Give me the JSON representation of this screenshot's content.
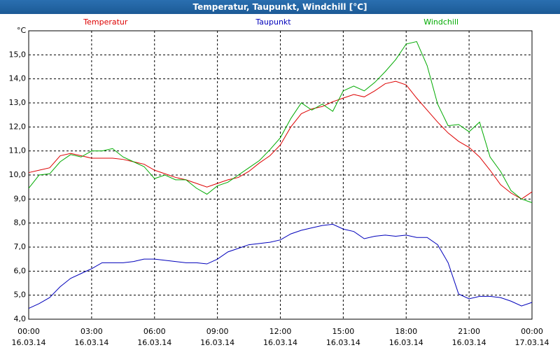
{
  "chart_data": {
    "type": "line",
    "title": "Temperatur, Taupunkt, Windchill [°C]",
    "y_unit": "°C",
    "x": [
      0,
      0.5,
      1,
      1.5,
      2,
      2.5,
      3,
      3.5,
      4,
      4.5,
      5,
      5.5,
      6,
      6.5,
      7,
      7.5,
      8,
      8.5,
      9,
      9.5,
      10,
      10.5,
      11,
      11.5,
      12,
      12.5,
      13,
      13.5,
      14,
      14.5,
      15,
      15.5,
      16,
      16.5,
      17,
      17.5,
      18,
      18.5,
      19,
      19.5,
      20,
      20.5,
      21,
      21.5,
      22,
      22.5,
      23,
      23.5,
      24
    ],
    "series": [
      {
        "name": "Temperatur",
        "color": "#dd0000",
        "values": [
          10.1,
          10.2,
          10.3,
          10.8,
          10.9,
          10.8,
          10.7,
          10.7,
          10.7,
          10.65,
          10.55,
          10.45,
          10.2,
          10.05,
          9.9,
          9.8,
          9.65,
          9.5,
          9.65,
          9.8,
          9.9,
          10.15,
          10.5,
          10.8,
          11.25,
          12.0,
          12.55,
          12.75,
          12.85,
          13.05,
          13.2,
          13.35,
          13.25,
          13.5,
          13.8,
          13.9,
          13.75,
          13.2,
          12.7,
          12.2,
          11.75,
          11.4,
          11.15,
          10.75,
          10.2,
          9.6,
          9.25,
          9.0,
          9.3
        ]
      },
      {
        "name": "Taupunkt",
        "color": "#0000bb",
        "values": [
          4.45,
          4.65,
          4.9,
          5.35,
          5.7,
          5.9,
          6.1,
          6.35,
          6.35,
          6.35,
          6.4,
          6.5,
          6.5,
          6.45,
          6.4,
          6.35,
          6.35,
          6.3,
          6.5,
          6.8,
          6.95,
          7.1,
          7.15,
          7.2,
          7.3,
          7.55,
          7.7,
          7.8,
          7.9,
          7.95,
          7.75,
          7.65,
          7.35,
          7.45,
          7.5,
          7.45,
          7.5,
          7.4,
          7.4,
          7.1,
          6.35,
          5.05,
          4.85,
          4.95,
          4.95,
          4.9,
          4.75,
          4.55,
          4.7
        ]
      },
      {
        "name": "Windchill",
        "color": "#00aa00",
        "values": [
          9.45,
          10.0,
          10.05,
          10.55,
          10.85,
          10.75,
          11.0,
          11.0,
          11.1,
          10.75,
          10.55,
          10.35,
          9.85,
          10.0,
          9.8,
          9.8,
          9.45,
          9.2,
          9.55,
          9.7,
          10.0,
          10.3,
          10.6,
          11.05,
          11.55,
          12.35,
          13.0,
          12.7,
          12.95,
          12.65,
          13.5,
          13.7,
          13.5,
          13.85,
          14.3,
          14.8,
          15.45,
          15.55,
          14.55,
          12.95,
          12.05,
          12.1,
          11.8,
          12.2,
          10.75,
          10.15,
          9.35,
          9.0,
          8.85
        ]
      }
    ],
    "xlim": [
      0,
      24
    ],
    "xticks": [
      {
        "value": 0,
        "label": "00:00",
        "sublabel": "16.03.14"
      },
      {
        "value": 3,
        "label": "03:00",
        "sublabel": "16.03.14"
      },
      {
        "value": 6,
        "label": "06:00",
        "sublabel": "16.03.14"
      },
      {
        "value": 9,
        "label": "09:00",
        "sublabel": "16.03.14"
      },
      {
        "value": 12,
        "label": "12:00",
        "sublabel": "16.03.14"
      },
      {
        "value": 15,
        "label": "15:00",
        "sublabel": "16.03.14"
      },
      {
        "value": 18,
        "label": "18:00",
        "sublabel": "16.03.14"
      },
      {
        "value": 21,
        "label": "21:00",
        "sublabel": "16.03.14"
      },
      {
        "value": 24,
        "label": "00:00",
        "sublabel": "17.03.14"
      }
    ],
    "ylim": [
      4,
      16
    ],
    "yticks": [
      {
        "value": 4,
        "label": "4,0"
      },
      {
        "value": 5,
        "label": "5,0"
      },
      {
        "value": 6,
        "label": "6,0"
      },
      {
        "value": 7,
        "label": "7,0"
      },
      {
        "value": 8,
        "label": "8,0"
      },
      {
        "value": 9,
        "label": "9,0"
      },
      {
        "value": 10,
        "label": "10,0"
      },
      {
        "value": 11,
        "label": "11,0"
      },
      {
        "value": 12,
        "label": "12,0"
      },
      {
        "value": 13,
        "label": "13,0"
      },
      {
        "value": 14,
        "label": "14,0"
      },
      {
        "value": 15,
        "label": "15,0"
      }
    ],
    "grid": true
  }
}
